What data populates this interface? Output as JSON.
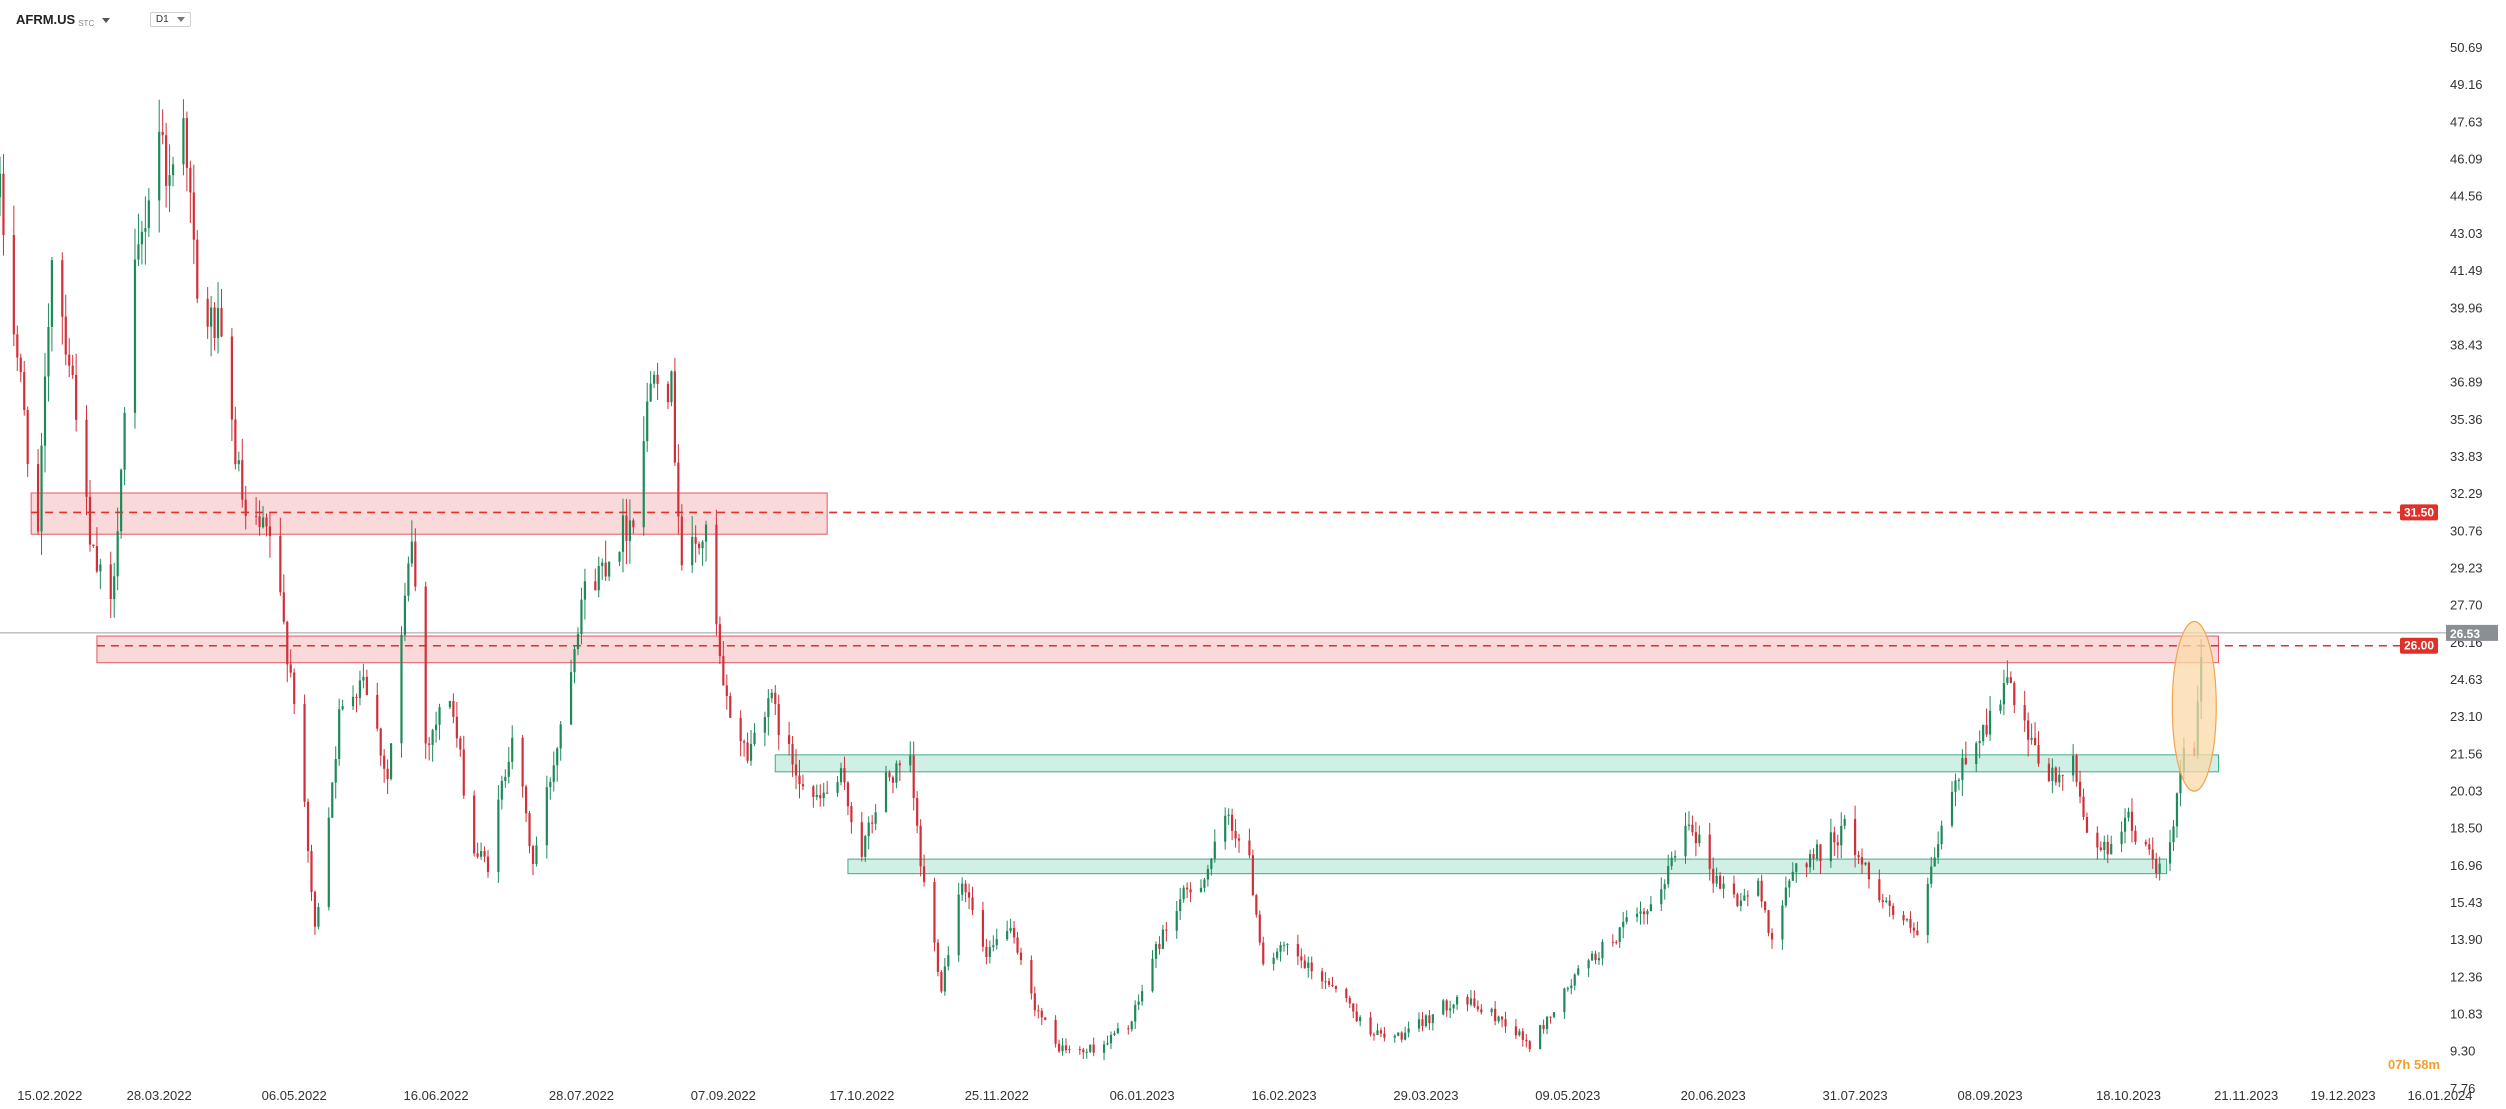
{
  "header": {
    "symbol": "AFRM.US",
    "symbol_suffix": "STC",
    "timeframe": "D1"
  },
  "countdown": "07h 58m",
  "colors": {
    "up": "#1e8a5a",
    "down": "#d0303a",
    "resistance_fill": "#f9d2d4",
    "resistance_stroke": "#e05a60",
    "support_fill": "#c8ece0",
    "support_stroke": "#3fae86",
    "highlight_fill": "#fbd9a8",
    "highlight_stroke": "#f0a550",
    "price_tag": "#8a8f96",
    "level_tag": "#e0302a"
  },
  "chart_data": {
    "type": "candlestick",
    "title": "",
    "xlabel": "",
    "ylabel": "",
    "ylim": [
      7.76,
      52.22
    ],
    "x_range": [
      "2022-02-10",
      "2024-01-16"
    ],
    "y_ticks": [
      50.69,
      49.16,
      47.63,
      46.09,
      44.56,
      43.03,
      41.49,
      39.96,
      38.43,
      36.89,
      35.36,
      33.83,
      32.29,
      30.76,
      29.23,
      27.7,
      26.16,
      24.63,
      23.1,
      21.56,
      20.03,
      18.5,
      16.96,
      15.43,
      13.9,
      12.36,
      10.83,
      9.3,
      7.76
    ],
    "x_ticks": [
      {
        "date": "2022-02-15",
        "label": "15.02.2022"
      },
      {
        "date": "2022-03-28",
        "label": "28.03.2022"
      },
      {
        "date": "2022-05-06",
        "label": "06.05.2022"
      },
      {
        "date": "2022-06-16",
        "label": "16.06.2022"
      },
      {
        "date": "2022-07-28",
        "label": "28.07.2022"
      },
      {
        "date": "2022-09-07",
        "label": "07.09.2022"
      },
      {
        "date": "2022-10-17",
        "label": "17.10.2022"
      },
      {
        "date": "2022-11-25",
        "label": "25.11.2022"
      },
      {
        "date": "2023-01-06",
        "label": "06.01.2023"
      },
      {
        "date": "2023-02-16",
        "label": "16.02.2023"
      },
      {
        "date": "2023-03-29",
        "label": "29.03.2023"
      },
      {
        "date": "2023-05-09",
        "label": "09.05.2023"
      },
      {
        "date": "2023-06-20",
        "label": "20.06.2023"
      },
      {
        "date": "2023-07-31",
        "label": "31.07.2023"
      },
      {
        "date": "2023-09-08",
        "label": "08.09.2023"
      },
      {
        "date": "2023-10-18",
        "label": "18.10.2023"
      },
      {
        "date": "2023-11-21",
        "label": "21.11.2023"
      },
      {
        "date": "2023-12-19",
        "label": "19.12.2023"
      },
      {
        "date": "2024-01-16",
        "label": "16.01.2024"
      }
    ],
    "current_price": {
      "value": 26.53,
      "label": "26.53"
    },
    "levels": [
      {
        "value": 31.5,
        "label": "31.50",
        "start": "2022-02-19"
      },
      {
        "value": 26.0,
        "label": "26.00",
        "start": "2022-03-10"
      }
    ],
    "zones": [
      {
        "kind": "resistance",
        "y_low": 30.6,
        "y_high": 32.3,
        "x_start": "2022-02-19",
        "x_end": "2022-10-07"
      },
      {
        "kind": "resistance",
        "y_low": 25.3,
        "y_high": 26.4,
        "x_start": "2022-03-10",
        "x_end": "2023-11-13"
      },
      {
        "kind": "support",
        "y_low": 20.8,
        "y_high": 21.5,
        "x_start": "2022-09-22",
        "x_end": "2023-11-13"
      },
      {
        "kind": "support",
        "y_low": 16.6,
        "y_high": 17.2,
        "x_start": "2022-10-13",
        "x_end": "2023-10-29"
      }
    ],
    "highlight": {
      "x_center": "2023-11-06",
      "y_low": 20.0,
      "y_high": 27.0
    },
    "anchors": [
      [
        "2022-02-10",
        44.5
      ],
      [
        "2022-02-15",
        38.0
      ],
      [
        "2022-02-21",
        30.5
      ],
      [
        "2022-02-25",
        42.5
      ],
      [
        "2022-03-04",
        36.0
      ],
      [
        "2022-03-08",
        30.0
      ],
      [
        "2022-03-14",
        27.5
      ],
      [
        "2022-03-21",
        41.0
      ],
      [
        "2022-03-28",
        47.5
      ],
      [
        "2022-03-31",
        45.0
      ],
      [
        "2022-04-04",
        48.5
      ],
      [
        "2022-04-08",
        40.0
      ],
      [
        "2022-04-14",
        39.0
      ],
      [
        "2022-04-22",
        31.0
      ],
      [
        "2022-04-29",
        30.5
      ],
      [
        "2022-05-06",
        24.0
      ],
      [
        "2022-05-12",
        14.2
      ],
      [
        "2022-05-19",
        23.0
      ],
      [
        "2022-05-26",
        25.0
      ],
      [
        "2022-06-02",
        20.5
      ],
      [
        "2022-06-09",
        30.5
      ],
      [
        "2022-06-13",
        22.0
      ],
      [
        "2022-06-20",
        24.0
      ],
      [
        "2022-06-27",
        17.5
      ],
      [
        "2022-07-01",
        17.0
      ],
      [
        "2022-07-08",
        22.5
      ],
      [
        "2022-07-14",
        17.0
      ],
      [
        "2022-07-21",
        22.0
      ],
      [
        "2022-07-28",
        28.0
      ],
      [
        "2022-08-04",
        29.5
      ],
      [
        "2022-08-12",
        31.5
      ],
      [
        "2022-08-18",
        38.0
      ],
      [
        "2022-08-23",
        36.5
      ],
      [
        "2022-08-26",
        29.5
      ],
      [
        "2022-09-02",
        30.5
      ],
      [
        "2022-09-07",
        24.0
      ],
      [
        "2022-09-14",
        21.5
      ],
      [
        "2022-09-20",
        24.0
      ],
      [
        "2022-09-26",
        21.5
      ],
      [
        "2022-10-04",
        19.5
      ],
      [
        "2022-10-11",
        20.5
      ],
      [
        "2022-10-17",
        17.5
      ],
      [
        "2022-10-24",
        20.5
      ],
      [
        "2022-10-31",
        21.0
      ],
      [
        "2022-11-03",
        17.0
      ],
      [
        "2022-11-09",
        12.0
      ],
      [
        "2022-11-15",
        16.5
      ],
      [
        "2022-11-22",
        13.0
      ],
      [
        "2022-11-28",
        14.5
      ],
      [
        "2022-12-05",
        11.5
      ],
      [
        "2022-12-12",
        9.5
      ],
      [
        "2022-12-19",
        9.2
      ],
      [
        "2022-12-26",
        9.6
      ],
      [
        "2023-01-03",
        10.5
      ],
      [
        "2023-01-10",
        13.5
      ],
      [
        "2023-01-17",
        15.5
      ],
      [
        "2023-01-24",
        16.5
      ],
      [
        "2023-01-31",
        19.0
      ],
      [
        "2023-02-06",
        17.0
      ],
      [
        "2023-02-10",
        13.0
      ],
      [
        "2023-02-17",
        13.5
      ],
      [
        "2023-02-24",
        12.5
      ],
      [
        "2023-03-03",
        12.0
      ],
      [
        "2023-03-10",
        10.5
      ],
      [
        "2023-03-17",
        9.8
      ],
      [
        "2023-03-24",
        10.0
      ],
      [
        "2023-03-31",
        10.8
      ],
      [
        "2023-04-07",
        11.5
      ],
      [
        "2023-04-14",
        11.0
      ],
      [
        "2023-04-21",
        10.5
      ],
      [
        "2023-04-28",
        9.5
      ],
      [
        "2023-05-05",
        11.0
      ],
      [
        "2023-05-12",
        12.5
      ],
      [
        "2023-05-19",
        13.5
      ],
      [
        "2023-05-26",
        14.5
      ],
      [
        "2023-06-02",
        15.0
      ],
      [
        "2023-06-09",
        17.5
      ],
      [
        "2023-06-13",
        19.0
      ],
      [
        "2023-06-20",
        16.5
      ],
      [
        "2023-06-27",
        15.5
      ],
      [
        "2023-07-03",
        16.0
      ],
      [
        "2023-07-07",
        14.0
      ],
      [
        "2023-07-14",
        17.0
      ],
      [
        "2023-07-21",
        17.5
      ],
      [
        "2023-07-28",
        18.5
      ],
      [
        "2023-08-04",
        16.5
      ],
      [
        "2023-08-11",
        15.0
      ],
      [
        "2023-08-18",
        14.0
      ],
      [
        "2023-08-25",
        18.5
      ],
      [
        "2023-09-01",
        21.5
      ],
      [
        "2023-09-08",
        23.0
      ],
      [
        "2023-09-13",
        24.5
      ],
      [
        "2023-09-19",
        22.0
      ],
      [
        "2023-09-26",
        20.5
      ],
      [
        "2023-10-02",
        21.0
      ],
      [
        "2023-10-06",
        18.5
      ],
      [
        "2023-10-11",
        17.5
      ],
      [
        "2023-10-17",
        19.0
      ],
      [
        "2023-10-23",
        17.5
      ],
      [
        "2023-10-27",
        16.8
      ],
      [
        "2023-10-30",
        17.5
      ],
      [
        "2023-11-01",
        19.5
      ],
      [
        "2023-11-03",
        22.0
      ],
      [
        "2023-11-06",
        21.0
      ],
      [
        "2023-11-08",
        25.5
      ]
    ]
  }
}
